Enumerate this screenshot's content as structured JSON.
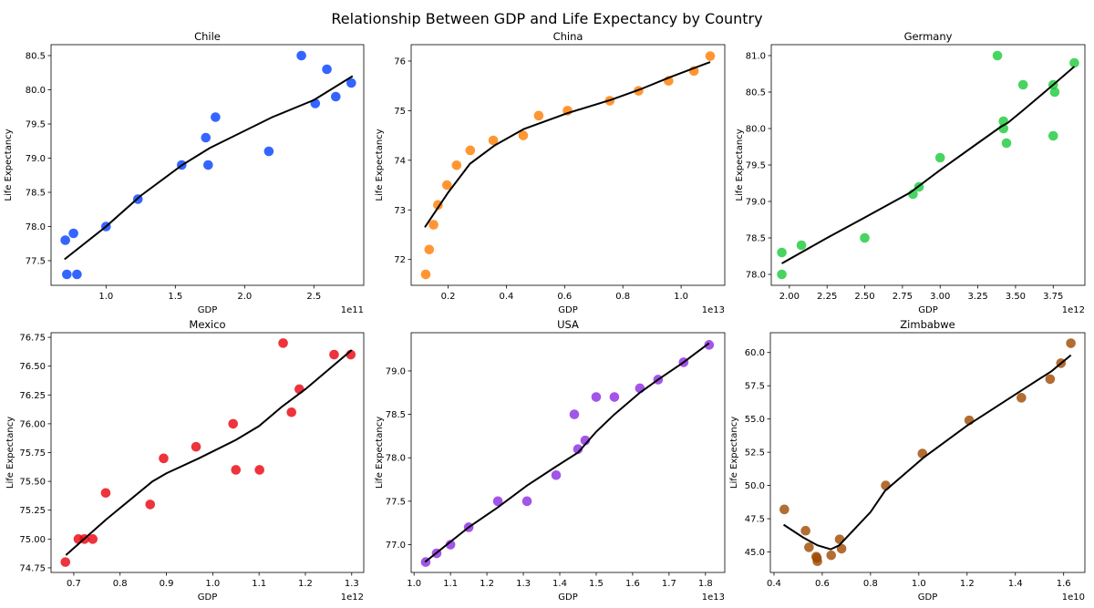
{
  "title": "Relationship Between GDP and Life Expectancy by Country",
  "chart_data": [
    {
      "type": "scatter",
      "title": "Chile",
      "xlabel": "GDP",
      "ylabel": "Life Expectancy",
      "x_offset_label": "1e11",
      "color": "#023eff",
      "trend_color": "#000000",
      "grid": false,
      "xlim": [
        0.603,
        2.86
      ],
      "ylim": [
        77.14,
        80.66
      ],
      "xticks": [
        "1.0",
        "1.5",
        "2.0",
        "2.5"
      ],
      "yticks": [
        "77.5",
        "78.0",
        "78.5",
        "79.0",
        "79.5",
        "80.0",
        "80.5"
      ],
      "points": [
        [
          0.706,
          77.8
        ],
        [
          0.765,
          77.9
        ],
        [
          0.717,
          77.3
        ],
        [
          0.79,
          77.3
        ],
        [
          1.0,
          78.0
        ],
        [
          1.23,
          78.4
        ],
        [
          1.546,
          78.9
        ],
        [
          1.72,
          79.3
        ],
        [
          1.737,
          78.9
        ],
        [
          1.79,
          79.6
        ],
        [
          2.175,
          79.1
        ],
        [
          2.41,
          80.5
        ],
        [
          2.51,
          79.8
        ],
        [
          2.594,
          80.3
        ],
        [
          2.658,
          79.9
        ],
        [
          2.77,
          80.1
        ]
      ],
      "trend": [
        [
          0.7,
          77.52
        ],
        [
          1.0,
          78.0
        ],
        [
          1.25,
          78.45
        ],
        [
          1.55,
          78.9
        ],
        [
          1.75,
          79.15
        ],
        [
          2.2,
          79.6
        ],
        [
          2.5,
          79.85
        ],
        [
          2.78,
          80.2
        ]
      ]
    },
    {
      "type": "scatter",
      "title": "China",
      "xlabel": "GDP",
      "ylabel": "Life Expectancy",
      "x_offset_label": "1e13",
      "color": "#ff7c00",
      "trend_color": "#000000",
      "grid": false,
      "xlim": [
        0.073,
        1.15
      ],
      "ylim": [
        71.48,
        76.33
      ],
      "xticks": [
        "0.2",
        "0.4",
        "0.6",
        "0.8",
        "1.0"
      ],
      "yticks": [
        "72",
        "73",
        "74",
        "75",
        "76"
      ],
      "points": [
        [
          0.123,
          71.7
        ],
        [
          0.135,
          72.2
        ],
        [
          0.15,
          72.7
        ],
        [
          0.165,
          73.1
        ],
        [
          0.196,
          73.5
        ],
        [
          0.229,
          73.9
        ],
        [
          0.276,
          74.2
        ],
        [
          0.355,
          74.4
        ],
        [
          0.458,
          74.5
        ],
        [
          0.511,
          74.9
        ],
        [
          0.61,
          75.0
        ],
        [
          0.755,
          75.2
        ],
        [
          0.854,
          75.4
        ],
        [
          0.957,
          75.6
        ],
        [
          1.044,
          75.8
        ],
        [
          1.1,
          76.1
        ]
      ],
      "trend": [
        [
          0.12,
          72.65
        ],
        [
          0.2,
          73.35
        ],
        [
          0.275,
          73.93
        ],
        [
          0.36,
          74.3
        ],
        [
          0.46,
          74.63
        ],
        [
          0.61,
          74.95
        ],
        [
          0.76,
          75.22
        ],
        [
          0.86,
          75.43
        ],
        [
          0.96,
          75.67
        ],
        [
          1.1,
          75.98
        ]
      ]
    },
    {
      "type": "scatter",
      "title": "Germany",
      "xlabel": "GDP",
      "ylabel": "Life Expectancy",
      "x_offset_label": "1e12",
      "color": "#1ac938",
      "trend_color": "#000000",
      "grid": false,
      "xlim": [
        1.88,
        3.96
      ],
      "ylim": [
        77.85,
        81.15
      ],
      "xticks": [
        "2.00",
        "2.25",
        "2.50",
        "2.75",
        "3.00",
        "3.25",
        "3.50",
        "3.75"
      ],
      "yticks": [
        "78.0",
        "78.5",
        "79.0",
        "79.5",
        "80.0",
        "80.5",
        "81.0"
      ],
      "points": [
        [
          1.95,
          78.3
        ],
        [
          1.95,
          78.0
        ],
        [
          2.08,
          78.4
        ],
        [
          2.5,
          78.5
        ],
        [
          2.82,
          79.1
        ],
        [
          2.86,
          79.2
        ],
        [
          3.0,
          79.6
        ],
        [
          3.38,
          81.0
        ],
        [
          3.42,
          80.1
        ],
        [
          3.42,
          80.0
        ],
        [
          3.44,
          79.8
        ],
        [
          3.55,
          80.6
        ],
        [
          3.75,
          80.6
        ],
        [
          3.76,
          80.5
        ],
        [
          3.75,
          79.9
        ],
        [
          3.89,
          80.9
        ]
      ],
      "trend": [
        [
          1.95,
          78.15
        ],
        [
          2.25,
          78.5
        ],
        [
          2.5,
          78.78
        ],
        [
          2.8,
          79.12
        ],
        [
          3.0,
          79.43
        ],
        [
          3.25,
          79.8
        ],
        [
          3.4,
          80.02
        ],
        [
          3.45,
          80.08
        ],
        [
          3.55,
          80.25
        ],
        [
          3.75,
          80.6
        ],
        [
          3.89,
          80.85
        ]
      ]
    },
    {
      "type": "scatter",
      "title": "Mexico",
      "xlabel": "GDP",
      "ylabel": "Life Expectancy",
      "x_offset_label": "1e12",
      "color": "#e8000b",
      "trend_color": "#000000",
      "grid": false,
      "xlim": [
        0.651,
        1.326
      ],
      "ylim": [
        74.71,
        76.79
      ],
      "xticks": [
        "0.7",
        "0.8",
        "0.9",
        "1.0",
        "1.1",
        "1.2",
        "1.3"
      ],
      "yticks": [
        "74.75",
        "75.00",
        "75.25",
        "75.50",
        "75.75",
        "76.00",
        "76.25",
        "76.50",
        "76.75"
      ],
      "points": [
        [
          0.682,
          74.8
        ],
        [
          0.71,
          75.0
        ],
        [
          0.723,
          75.0
        ],
        [
          0.741,
          75.0
        ],
        [
          0.769,
          75.4
        ],
        [
          0.865,
          75.3
        ],
        [
          0.894,
          75.7
        ],
        [
          0.964,
          75.8
        ],
        [
          1.044,
          76.0
        ],
        [
          1.05,
          75.6
        ],
        [
          1.101,
          75.6
        ],
        [
          1.152,
          76.7
        ],
        [
          1.17,
          76.1
        ],
        [
          1.187,
          76.3
        ],
        [
          1.262,
          76.6
        ],
        [
          1.298,
          76.6
        ]
      ],
      "trend": [
        [
          0.683,
          74.86
        ],
        [
          0.77,
          75.17
        ],
        [
          0.87,
          75.5
        ],
        [
          0.9,
          75.57
        ],
        [
          0.97,
          75.7
        ],
        [
          1.05,
          75.86
        ],
        [
          1.1,
          75.98
        ],
        [
          1.15,
          76.15
        ],
        [
          1.2,
          76.3
        ],
        [
          1.3,
          76.64
        ]
      ]
    },
    {
      "type": "scatter",
      "title": "USA",
      "xlabel": "GDP",
      "ylabel": "Life Expectancy",
      "x_offset_label": "1e13",
      "color": "#8b2be2",
      "trend_color": "#000000",
      "grid": false,
      "xlim": [
        0.992,
        1.853
      ],
      "ylim": [
        76.68,
        79.44
      ],
      "xticks": [
        "1.0",
        "1.1",
        "1.2",
        "1.3",
        "1.4",
        "1.5",
        "1.6",
        "1.7",
        "1.8"
      ],
      "yticks": [
        "77.0",
        "77.5",
        "78.0",
        "78.5",
        "79.0"
      ],
      "points": [
        [
          1.032,
          76.8
        ],
        [
          1.062,
          76.9
        ],
        [
          1.1,
          77.0
        ],
        [
          1.15,
          77.2
        ],
        [
          1.23,
          77.5
        ],
        [
          1.31,
          77.5
        ],
        [
          1.39,
          77.8
        ],
        [
          1.44,
          78.5
        ],
        [
          1.45,
          78.1
        ],
        [
          1.47,
          78.2
        ],
        [
          1.5,
          78.7
        ],
        [
          1.55,
          78.7
        ],
        [
          1.62,
          78.8
        ],
        [
          1.67,
          78.9
        ],
        [
          1.74,
          79.1
        ],
        [
          1.81,
          79.3
        ]
      ],
      "trend": [
        [
          1.03,
          76.8
        ],
        [
          1.15,
          77.2
        ],
        [
          1.23,
          77.43
        ],
        [
          1.31,
          77.68
        ],
        [
          1.39,
          77.9
        ],
        [
          1.45,
          78.06
        ],
        [
          1.5,
          78.3
        ],
        [
          1.55,
          78.5
        ],
        [
          1.62,
          78.75
        ],
        [
          1.67,
          78.9
        ],
        [
          1.74,
          79.1
        ],
        [
          1.81,
          79.32
        ]
      ]
    },
    {
      "type": "scatter",
      "title": "Zimbabwe",
      "xlabel": "GDP",
      "ylabel": "Life Expectancy",
      "x_offset_label": "1e10",
      "color": "#9f4800",
      "trend_color": "#000000",
      "grid": false,
      "xlim": [
        0.385,
        1.688
      ],
      "ylim": [
        43.46,
        61.49
      ],
      "xticks": [
        "0.4",
        "0.6",
        "0.8",
        "1.0",
        "1.2",
        "1.4",
        "1.6"
      ],
      "yticks": [
        "45.0",
        "47.5",
        "50.0",
        "52.5",
        "55.0",
        "57.5",
        "60.0"
      ],
      "points": [
        [
          0.443,
          48.2
        ],
        [
          0.531,
          46.6
        ],
        [
          0.545,
          45.35
        ],
        [
          0.578,
          44.55
        ],
        [
          0.58,
          44.3
        ],
        [
          0.575,
          44.65
        ],
        [
          0.637,
          44.75
        ],
        [
          0.672,
          45.95
        ],
        [
          0.68,
          45.25
        ],
        [
          0.863,
          50.0
        ],
        [
          1.015,
          52.4
        ],
        [
          1.209,
          54.9
        ],
        [
          1.425,
          56.6
        ],
        [
          1.544,
          58.0
        ],
        [
          1.589,
          59.2
        ],
        [
          1.63,
          60.7
        ]
      ],
      "trend": [
        [
          0.44,
          47.05
        ],
        [
          0.52,
          46.1
        ],
        [
          0.58,
          45.5
        ],
        [
          0.635,
          45.2
        ],
        [
          0.67,
          45.5
        ],
        [
          0.8,
          48.0
        ],
        [
          0.86,
          49.6
        ],
        [
          1.02,
          52.1
        ],
        [
          1.2,
          54.5
        ],
        [
          1.43,
          57.2
        ],
        [
          1.55,
          58.6
        ],
        [
          1.63,
          59.8
        ]
      ]
    }
  ]
}
